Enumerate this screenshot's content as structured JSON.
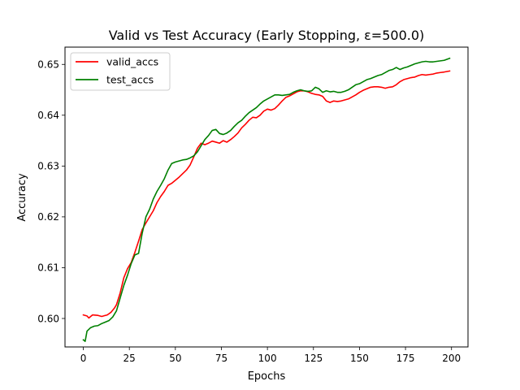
{
  "chart_data": {
    "type": "line",
    "title": "Valid vs Test Accuracy (Early Stopping, ε=500.0)",
    "xlabel": "Epochs",
    "ylabel": "Accuracy",
    "xlim": [
      -9.95,
      208.95
    ],
    "ylim": [
      0.5944,
      0.6534
    ],
    "xticks": [
      0,
      25,
      50,
      75,
      100,
      125,
      150,
      175,
      200
    ],
    "xtick_labels": [
      "0",
      "25",
      "50",
      "75",
      "100",
      "125",
      "150",
      "175",
      "200"
    ],
    "yticks": [
      0.6,
      0.61,
      0.62,
      0.63,
      0.64,
      0.65
    ],
    "ytick_labels": [
      "0.60",
      "0.61",
      "0.62",
      "0.63",
      "0.64",
      "0.65"
    ],
    "grid": false,
    "legend_position": "top-left",
    "series": [
      {
        "name": "valid_accs",
        "color": "#ff0000",
        "x": [
          0,
          2,
          3,
          5,
          8,
          10,
          13,
          15,
          17,
          18,
          20,
          22,
          24,
          26,
          28,
          30,
          32,
          34,
          36,
          38,
          40,
          42,
          44,
          46,
          48,
          50,
          52,
          54,
          56,
          58,
          60,
          62,
          64,
          66,
          68,
          70,
          72,
          74,
          76,
          78,
          80,
          82,
          84,
          86,
          88,
          90,
          92,
          94,
          96,
          98,
          100,
          102,
          104,
          106,
          108,
          110,
          112,
          114,
          116,
          118,
          120,
          122,
          124,
          126,
          128,
          130,
          132,
          134,
          136,
          138,
          140,
          142,
          144,
          146,
          148,
          150,
          152,
          154,
          156,
          158,
          160,
          162,
          164,
          166,
          168,
          170,
          172,
          174,
          176,
          178,
          180,
          182,
          184,
          186,
          188,
          190,
          192,
          194,
          196,
          199
        ],
        "y": [
          0.6007,
          0.6005,
          0.6001,
          0.6007,
          0.6006,
          0.6004,
          0.6007,
          0.6012,
          0.6021,
          0.6027,
          0.605,
          0.608,
          0.6098,
          0.611,
          0.613,
          0.6152,
          0.6175,
          0.6188,
          0.62,
          0.6212,
          0.6228,
          0.624,
          0.625,
          0.6262,
          0.6266,
          0.6272,
          0.6278,
          0.6285,
          0.6292,
          0.6302,
          0.6318,
          0.6335,
          0.6345,
          0.6342,
          0.6345,
          0.6349,
          0.6347,
          0.6345,
          0.635,
          0.6347,
          0.6352,
          0.6358,
          0.6365,
          0.6375,
          0.6382,
          0.639,
          0.6396,
          0.6395,
          0.64,
          0.6408,
          0.6412,
          0.641,
          0.6413,
          0.642,
          0.6428,
          0.6435,
          0.6438,
          0.6442,
          0.6446,
          0.6448,
          0.6448,
          0.6446,
          0.6443,
          0.6441,
          0.644,
          0.6437,
          0.6428,
          0.6425,
          0.6428,
          0.6427,
          0.6428,
          0.643,
          0.6432,
          0.6436,
          0.644,
          0.6445,
          0.6449,
          0.6452,
          0.6455,
          0.6456,
          0.6456,
          0.6455,
          0.6453,
          0.6455,
          0.6456,
          0.646,
          0.6466,
          0.647,
          0.6472,
          0.6474,
          0.6475,
          0.6478,
          0.648,
          0.6479,
          0.648,
          0.6481,
          0.6483,
          0.6484,
          0.6485,
          0.6487
        ]
      },
      {
        "name": "test_accs",
        "color": "#008000",
        "x": [
          0,
          1,
          2,
          4,
          6,
          8,
          10,
          12,
          14,
          16,
          18,
          20,
          22,
          24,
          26,
          28,
          30,
          32,
          34,
          36,
          38,
          40,
          42,
          44,
          46,
          48,
          50,
          52,
          54,
          56,
          58,
          60,
          62,
          64,
          66,
          68,
          70,
          72,
          74,
          76,
          78,
          80,
          82,
          84,
          86,
          88,
          90,
          92,
          94,
          96,
          98,
          100,
          102,
          104,
          106,
          108,
          110,
          112,
          114,
          116,
          118,
          120,
          122,
          124,
          126,
          128,
          130,
          132,
          134,
          136,
          138,
          140,
          142,
          144,
          146,
          148,
          150,
          152,
          154,
          156,
          158,
          160,
          162,
          164,
          166,
          168,
          170,
          172,
          174,
          176,
          178,
          180,
          182,
          184,
          186,
          188,
          190,
          192,
          194,
          196,
          199
        ],
        "y": [
          0.5958,
          0.5955,
          0.5975,
          0.5982,
          0.5985,
          0.5986,
          0.599,
          0.5993,
          0.5996,
          0.6003,
          0.6015,
          0.604,
          0.6065,
          0.6085,
          0.6108,
          0.6125,
          0.6128,
          0.6168,
          0.62,
          0.6215,
          0.6235,
          0.625,
          0.6262,
          0.6275,
          0.6292,
          0.6305,
          0.6308,
          0.631,
          0.6312,
          0.6313,
          0.6316,
          0.632,
          0.6328,
          0.634,
          0.6352,
          0.636,
          0.637,
          0.6372,
          0.6364,
          0.6362,
          0.6365,
          0.637,
          0.6378,
          0.6385,
          0.639,
          0.6398,
          0.6405,
          0.641,
          0.6415,
          0.6422,
          0.6428,
          0.6432,
          0.6436,
          0.644,
          0.644,
          0.6439,
          0.644,
          0.6441,
          0.6445,
          0.6448,
          0.645,
          0.6448,
          0.6447,
          0.6448,
          0.6455,
          0.6452,
          0.6445,
          0.6448,
          0.6446,
          0.6447,
          0.6445,
          0.6445,
          0.6447,
          0.645,
          0.6455,
          0.646,
          0.6462,
          0.6466,
          0.647,
          0.6472,
          0.6475,
          0.6478,
          0.648,
          0.6484,
          0.6488,
          0.649,
          0.6494,
          0.649,
          0.6493,
          0.6495,
          0.6498,
          0.6501,
          0.6503,
          0.6505,
          0.6506,
          0.6505,
          0.6505,
          0.6506,
          0.6507,
          0.6508,
          0.6512
        ]
      }
    ]
  }
}
